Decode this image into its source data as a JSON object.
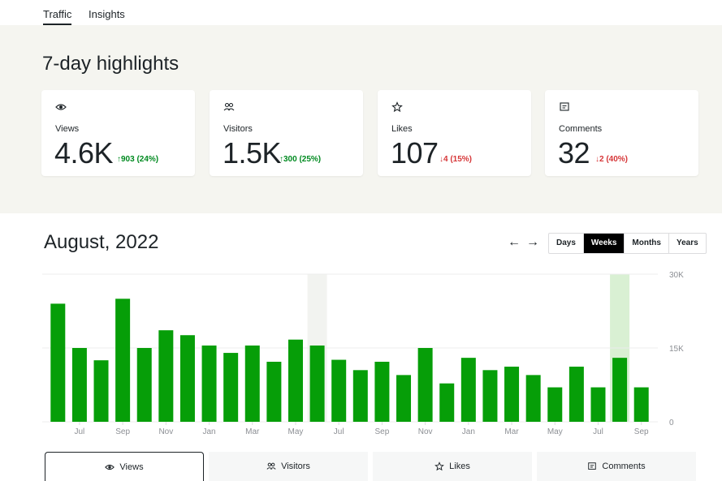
{
  "tabs": [
    {
      "label": "Traffic"
    },
    {
      "label": "Insights"
    }
  ],
  "highlights": {
    "title": "7-day highlights",
    "cards": [
      {
        "icon": "eye-icon",
        "label": "Views",
        "value": "4.6K",
        "delta": "↑903 (24%)",
        "trend": "up"
      },
      {
        "icon": "people-icon",
        "label": "Visitors",
        "value": "1.5K",
        "delta": "↑300 (25%)",
        "trend": "up"
      },
      {
        "icon": "star-icon",
        "label": "Likes",
        "value": "107",
        "delta": "↓4 (15%)",
        "trend": "down"
      },
      {
        "icon": "comment-icon",
        "label": "Comments",
        "value": "32",
        "delta": "↓2 (40%)",
        "trend": "down"
      }
    ]
  },
  "period": {
    "title": "August, 2022",
    "prev_icon": "arrow-left-icon",
    "next_icon": "arrow-right-icon",
    "options": [
      "Days",
      "Weeks",
      "Months",
      "Years"
    ],
    "selected": "Weeks"
  },
  "colors": {
    "bar": "#069e08",
    "up": "#008a20",
    "down": "#d63638",
    "highlight_bar": "#069e08"
  },
  "chart_data": {
    "type": "bar",
    "y_ticks": [
      "30K",
      "15K",
      "0"
    ],
    "ylim": [
      0,
      30000
    ],
    "x_ticks": [
      "Jul",
      "Sep",
      "Nov",
      "Jan",
      "Mar",
      "May",
      "Jul",
      "Sep",
      "Nov",
      "Jan",
      "Mar",
      "May",
      "Jul",
      "Sep"
    ],
    "values": [
      24000,
      15000,
      12500,
      25000,
      15000,
      18600,
      17600,
      15500,
      14000,
      15500,
      12200,
      16700,
      15500,
      12600,
      10500,
      12200,
      9500,
      15000,
      7800,
      13000,
      10500,
      11200,
      9500,
      7000,
      11200,
      7000,
      13000,
      7000
    ],
    "hovered_index": 12,
    "selected_index": 26,
    "grid": true
  },
  "metric_tabs": [
    {
      "icon": "eye-icon",
      "label": "Views"
    },
    {
      "icon": "people-icon",
      "label": "Visitors"
    },
    {
      "icon": "star-icon",
      "label": "Likes"
    },
    {
      "icon": "comment-icon",
      "label": "Comments"
    }
  ],
  "metric_selected": "Views"
}
